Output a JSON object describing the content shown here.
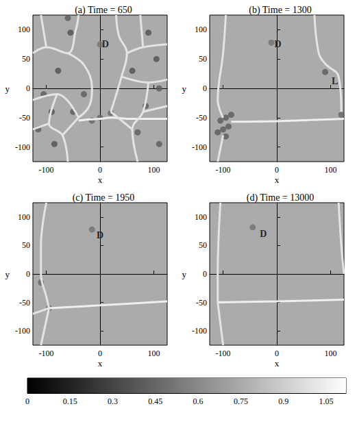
{
  "chart_data": [
    {
      "type": "scatter",
      "title": "(a) Time = 650",
      "xlabel": "x",
      "ylabel": "y",
      "xlim": [
        -125,
        125
      ],
      "xticks": [
        -100,
        0,
        100
      ],
      "ylim": [
        -125,
        125
      ],
      "yticks": [
        -100,
        -50,
        0,
        50,
        100
      ],
      "background": 0.75,
      "defects": {
        "x": [
          0,
          -78,
          -90,
          -85,
          -55,
          -50,
          -30,
          -105,
          -115,
          60,
          90,
          105,
          70,
          110,
          85,
          110,
          -60,
          20,
          -15,
          0
        ],
        "y": [
          75,
          30,
          -40,
          -95,
          95,
          -40,
          -10,
          -10,
          -70,
          30,
          95,
          50,
          -75,
          -95,
          -30,
          0,
          120,
          -42,
          -55,
          -50
        ],
        "values": [
          0.5,
          0.35,
          0.35,
          0.35,
          0.35,
          0.4,
          0.4,
          0.4,
          0.4,
          0.35,
          0.35,
          0.35,
          0.4,
          0.4,
          0.4,
          0.4,
          0.4,
          0.45,
          0.45,
          0.45
        ]
      },
      "walls": [
        {
          "x": [
            -125,
            -100,
            -60,
            -45,
            -40
          ],
          "y": [
            60,
            70,
            60,
            100,
            125
          ],
          "value": 1.0
        },
        {
          "x": [
            -100,
            -110
          ],
          "y": [
            70,
            125
          ],
          "value": 1.0
        },
        {
          "x": [
            -60,
            -30,
            -15,
            -20,
            -40
          ],
          "y": [
            60,
            40,
            0,
            -30,
            -50
          ],
          "value": 1.0
        },
        {
          "x": [
            -40,
            -20,
            0,
            20,
            60,
            125
          ],
          "y": [
            -55,
            -53,
            -52,
            -50,
            -52,
            -52
          ],
          "value": 1.05
        },
        {
          "x": [
            30,
            35,
            50,
            40,
            20
          ],
          "y": [
            125,
            90,
            60,
            20,
            -40
          ],
          "value": 1.0
        },
        {
          "x": [
            50,
            80,
            125
          ],
          "y": [
            60,
            70,
            75
          ],
          "value": 1.0
        },
        {
          "x": [
            80,
            75
          ],
          "y": [
            70,
            125
          ],
          "value": 1.0
        },
        {
          "x": [
            40,
            90,
            125
          ],
          "y": [
            20,
            10,
            15
          ],
          "value": 1.0
        },
        {
          "x": [
            90,
            80,
            60,
            70
          ],
          "y": [
            10,
            -40,
            -70,
            -125
          ],
          "value": 1.0
        },
        {
          "x": [
            80,
            125
          ],
          "y": [
            -40,
            -30
          ],
          "value": 1.0
        },
        {
          "x": [
            20,
            60
          ],
          "y": [
            -40,
            -70
          ],
          "value": 1.0
        },
        {
          "x": [
            -125,
            -80,
            -40
          ],
          "y": [
            -20,
            -10,
            -50
          ],
          "value": 1.0
        },
        {
          "x": [
            -80,
            -95,
            -70,
            -60
          ],
          "y": [
            -10,
            -60,
            -80,
            -125
          ],
          "value": 1.0
        },
        {
          "x": [
            -95,
            -125
          ],
          "y": [
            -60,
            -70
          ],
          "value": 1.0
        },
        {
          "x": [
            -70,
            -40
          ],
          "y": [
            -80,
            -50
          ],
          "value": 1.0
        }
      ],
      "annotations": [
        {
          "text": "D",
          "x": 10,
          "y": 75
        }
      ]
    },
    {
      "type": "scatter",
      "title": "(b) Time = 1300",
      "xlabel": "x",
      "ylabel": "y",
      "xlim": [
        -125,
        125
      ],
      "xticks": [
        -100,
        0,
        100
      ],
      "ylim": [
        -125,
        125
      ],
      "yticks": [
        -100,
        -50,
        0,
        50,
        100
      ],
      "background": 0.75,
      "defects": {
        "x": [
          -10,
          90,
          -105,
          -95,
          -100,
          -90,
          -85,
          -110,
          -95,
          120
        ],
        "y": [
          78,
          28,
          -55,
          -50,
          -70,
          -65,
          -45,
          -75,
          -82,
          -45
        ],
        "values": [
          0.5,
          0.4,
          0.4,
          0.4,
          0.4,
          0.4,
          0.4,
          0.4,
          0.4,
          0.45
        ]
      },
      "walls": [
        {
          "x": [
            -95,
            -100,
            -110,
            -100
          ],
          "y": [
            125,
            60,
            -20,
            -50
          ],
          "value": 1.0
        },
        {
          "x": [
            -85,
            0,
            60,
            125
          ],
          "y": [
            -57,
            -56,
            -54,
            -52
          ],
          "value": 1.05
        },
        {
          "x": [
            -100,
            -110
          ],
          "y": [
            -80,
            -125
          ],
          "value": 1.0
        },
        {
          "x": [
            70,
            78,
            90,
            115,
            120
          ],
          "y": [
            125,
            60,
            42,
            20,
            -40
          ],
          "value": 1.0
        }
      ],
      "annotations": [
        {
          "text": "D",
          "x": 2,
          "y": 75
        },
        {
          "text": "L",
          "x": 108,
          "y": 12
        }
      ]
    },
    {
      "type": "scatter",
      "title": "(c) Time = 1950",
      "xlabel": "x",
      "ylabel": "y",
      "xlim": [
        -125,
        125
      ],
      "xticks": [
        -100,
        0,
        100
      ],
      "ylim": [
        -125,
        125
      ],
      "yticks": [
        -100,
        -50,
        0,
        50,
        100
      ],
      "background": 0.75,
      "defects": {
        "x": [
          -15,
          -110,
          -95
        ],
        "y": [
          78,
          -15,
          -60
        ],
        "values": [
          0.5,
          0.45,
          0.45
        ]
      },
      "walls": [
        {
          "x": [
            -100,
            -110,
            -110,
            -100,
            -95
          ],
          "y": [
            125,
            50,
            0,
            -40,
            -60
          ],
          "value": 1.0
        },
        {
          "x": [
            -95,
            0,
            125
          ],
          "y": [
            -60,
            -55,
            -48
          ],
          "value": 1.05
        },
        {
          "x": [
            -95,
            -110
          ],
          "y": [
            -60,
            -125
          ],
          "value": 1.0
        },
        {
          "x": [
            -95,
            -125
          ],
          "y": [
            -60,
            -70
          ],
          "value": 1.0
        }
      ],
      "annotations": [
        {
          "text": "D",
          "x": 0,
          "y": 68
        }
      ]
    },
    {
      "type": "scatter",
      "title": "(d) Time = 13000",
      "xlabel": "x",
      "ylabel": "y",
      "xlim": [
        -125,
        125
      ],
      "xticks": [
        -100,
        0,
        100
      ],
      "ylim": [
        -125,
        125
      ],
      "yticks": [
        -100,
        -50,
        0,
        50,
        100
      ],
      "background": 0.75,
      "defects": {
        "x": [
          -45
        ],
        "y": [
          82
        ],
        "values": [
          0.5
        ]
      },
      "walls": [
        {
          "x": [
            -105,
            -110,
            -110
          ],
          "y": [
            125,
            0,
            -50
          ],
          "value": 1.0
        },
        {
          "x": [
            -110,
            0,
            125
          ],
          "y": [
            -50,
            -48,
            -45
          ],
          "value": 1.05
        },
        {
          "x": [
            -110,
            -100
          ],
          "y": [
            -50,
            -125
          ],
          "value": 1.0
        },
        {
          "x": [
            115,
            120,
            125
          ],
          "y": [
            125,
            50,
            0
          ],
          "value": 1.0
        }
      ],
      "annotations": [
        {
          "text": "D",
          "x": -25,
          "y": 70
        }
      ]
    }
  ],
  "colorbar": {
    "range": [
      0,
      1.12
    ],
    "ticks": [
      0,
      0.15,
      0.3,
      0.45,
      0.6,
      0.75,
      0.9,
      1.05
    ]
  }
}
